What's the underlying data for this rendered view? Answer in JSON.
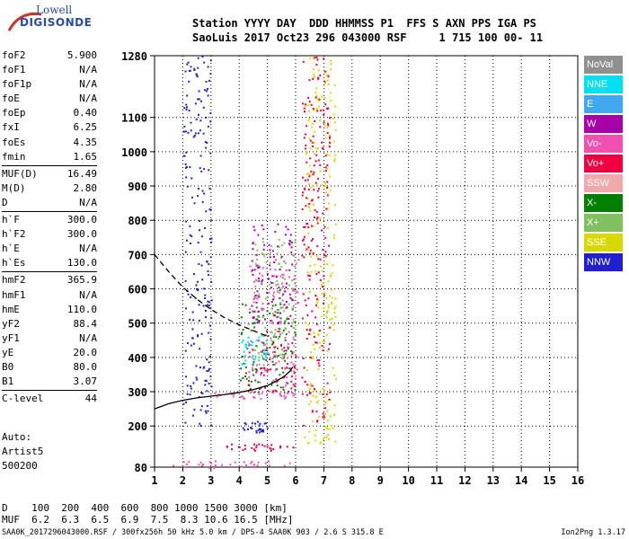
{
  "header": {
    "row1": "Station YYYY DAY  DDD HHMMSS P1  FFS S AXN PPS IGA PS",
    "row2": "SaoLuis 2017 Oct23 296 043000 RSF     1 715 100 00- 11"
  },
  "logo": {
    "line1": "Lowell",
    "line2": "DIGISONDE"
  },
  "params": [
    {
      "name": "foF2",
      "value": "5.900"
    },
    {
      "name": "foF1",
      "value": "N/A"
    },
    {
      "name": "foF1p",
      "value": "N/A"
    },
    {
      "name": "foE",
      "value": "N/A"
    },
    {
      "name": "foEp",
      "value": "0.40"
    },
    {
      "name": "fxI",
      "value": "6.25"
    },
    {
      "name": "foEs",
      "value": "4.35"
    },
    {
      "name": "fmin",
      "value": "1.65"
    },
    {
      "sep": true
    },
    {
      "name": "MUF(D)",
      "value": "16.49"
    },
    {
      "name": "M(D)",
      "value": "2.80"
    },
    {
      "name": "D",
      "value": "N/A"
    },
    {
      "sep": true
    },
    {
      "name": "h`F",
      "value": "300.0"
    },
    {
      "name": "h`F2",
      "value": "300.0"
    },
    {
      "name": "h`E",
      "value": "N/A"
    },
    {
      "name": "h`Es",
      "value": "130.0"
    },
    {
      "sep": true
    },
    {
      "name": "hmF2",
      "value": "365.9"
    },
    {
      "name": "hmF1",
      "value": "N/A"
    },
    {
      "name": "hmE",
      "value": "110.0"
    },
    {
      "name": "yF2",
      "value": "88.4"
    },
    {
      "name": "yF1",
      "value": "N/A"
    },
    {
      "name": "yE",
      "value": "20.0"
    },
    {
      "name": "B0",
      "value": "80.0"
    },
    {
      "name": "B1",
      "value": "3.07"
    },
    {
      "sep": true
    },
    {
      "name": "C-level",
      "value": "44"
    }
  ],
  "auto": {
    "line1": "Auto:",
    "line2": "Artist5",
    "line3": "500200"
  },
  "legend": [
    {
      "label": "NoVal",
      "color": "#909090"
    },
    {
      "label": "NNE",
      "color": "#00e0f0"
    },
    {
      "label": "E",
      "color": "#40a8f0"
    },
    {
      "label": "W",
      "color": "#a800a8"
    },
    {
      "label": "Vo-",
      "color": "#f050b0"
    },
    {
      "label": "Vo+",
      "color": "#f00040"
    },
    {
      "label": "SSW",
      "color": "#f0a8a8"
    },
    {
      "label": "X-",
      "color": "#008000"
    },
    {
      "label": "X+",
      "color": "#80c060"
    },
    {
      "label": "SSE",
      "color": "#d8d800"
    },
    {
      "label": "NNW",
      "color": "#2020d0"
    }
  ],
  "dmuf": {
    "row1": "D    100  200  400  600  800 1000 1500 3000 [km]",
    "row2": "MUF  6.2  6.3  6.5  6.9  7.5  8.3 10.6 16.5 [MHz]"
  },
  "footer": {
    "left": "SAA0K_2017296043000.RSF / 300fx256h 50 kHz 5.0 km / DPS-4 SAA0K 903 / 2.6 S 315.8 E",
    "right": "Ion2Png 1.3.17"
  },
  "chart_data": {
    "type": "scatter",
    "xlim": [
      1,
      16
    ],
    "ylim": [
      80,
      1280
    ],
    "x_ticks": [
      1,
      2,
      3,
      4,
      5,
      6,
      7,
      8,
      9,
      10,
      11,
      12,
      13,
      14,
      15,
      16
    ],
    "y_ticks": [
      80,
      200,
      300,
      400,
      500,
      600,
      700,
      800,
      900,
      1000,
      1100,
      1280
    ],
    "grid": true,
    "trace_curve": {
      "x": [
        1.0,
        1.5,
        2.0,
        2.5,
        3.0,
        3.5,
        4.0,
        4.5,
        5.0,
        5.3,
        5.6,
        5.8,
        5.9
      ],
      "y": [
        250,
        265,
        275,
        282,
        287,
        292,
        298,
        306,
        318,
        330,
        345,
        360,
        372
      ]
    },
    "profile_curve": {
      "x": [
        1.0,
        1.5,
        2.0,
        2.5,
        3.0,
        3.5,
        4.0,
        4.5,
        4.8,
        5.0
      ],
      "y": [
        700,
        650,
        605,
        570,
        540,
        515,
        495,
        478,
        468,
        462
      ]
    },
    "clusters": [
      {
        "color": "#2020d0",
        "x": [
          4.0,
          5.0
        ],
        "y": [
          180,
          215
        ]
      },
      {
        "color": "#f00040",
        "x": [
          3.5,
          5.9
        ],
        "y": [
          130,
          150
        ]
      },
      {
        "color": "#f050b0",
        "x": [
          1.6,
          5.9
        ],
        "y": [
          80,
          100
        ]
      },
      {
        "color": "#008000",
        "x": [
          4.0,
          6.0
        ],
        "y": [
          300,
          560
        ]
      },
      {
        "color": "#f00040",
        "x": [
          4.2,
          6.0
        ],
        "y": [
          300,
          450
        ]
      },
      {
        "color": "#f050b0",
        "x": [
          4.3,
          6.1
        ],
        "y": [
          320,
          700
        ]
      },
      {
        "color": "#00e0f0",
        "x": [
          4.0,
          5.0
        ],
        "y": [
          380,
          470
        ]
      },
      {
        "color": "#80c060",
        "x": [
          4.5,
          6.0
        ],
        "y": [
          380,
          760
        ]
      },
      {
        "color": "#a800a8",
        "x": [
          4.4,
          5.9
        ],
        "y": [
          500,
          800
        ]
      },
      {
        "color": "#d8d800",
        "x": [
          6.3,
          7.4
        ],
        "y": [
          150,
          1280
        ]
      },
      {
        "color": "#f00040",
        "x": [
          6.2,
          7.2
        ],
        "y": [
          200,
          1280
        ]
      },
      {
        "color": "#2020d0",
        "x": [
          2.0,
          3.0
        ],
        "y": [
          200,
          1280
        ]
      },
      {
        "color": "#f050b0",
        "x": [
          3.0,
          6.0
        ],
        "y": [
          280,
          300
        ]
      }
    ]
  }
}
